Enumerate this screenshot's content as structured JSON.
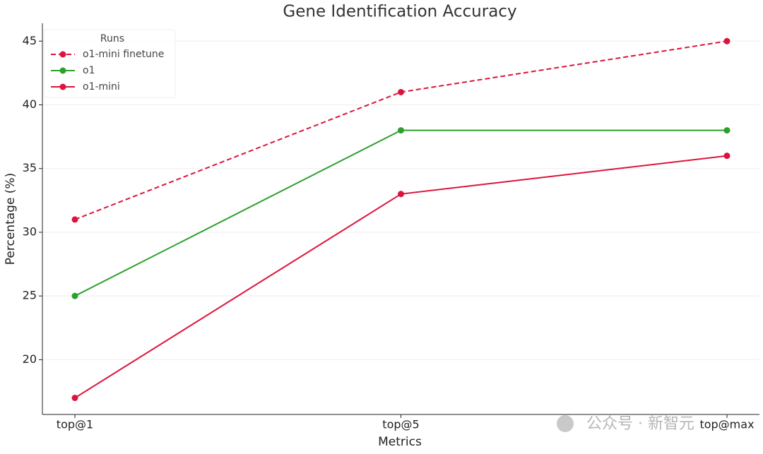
{
  "chart_data": {
    "type": "line",
    "title": "Gene Identification Accuracy",
    "x_label": "Metrics",
    "y_label": "Percentage (%)",
    "categories": [
      "top@1",
      "top@5",
      "top@max"
    ],
    "series": [
      {
        "name": "o1-mini finetune",
        "color": "#dc143c",
        "linestyle": "dashed",
        "values": [
          31,
          41,
          45
        ]
      },
      {
        "name": "o1",
        "color": "#2ca02c",
        "linestyle": "solid",
        "values": [
          25,
          38,
          38
        ]
      },
      {
        "name": "o1-mini",
        "color": "#dc143c",
        "linestyle": "solid",
        "values": [
          17,
          33,
          36
        ]
      }
    ],
    "ylim": [
      15.7,
      46.4
    ],
    "yticks": [
      20,
      25,
      30,
      35,
      40,
      45
    ],
    "grid": true,
    "legend_title": "Runs",
    "legend_position": "upper left",
    "watermark": "公众号 · 新智元"
  }
}
